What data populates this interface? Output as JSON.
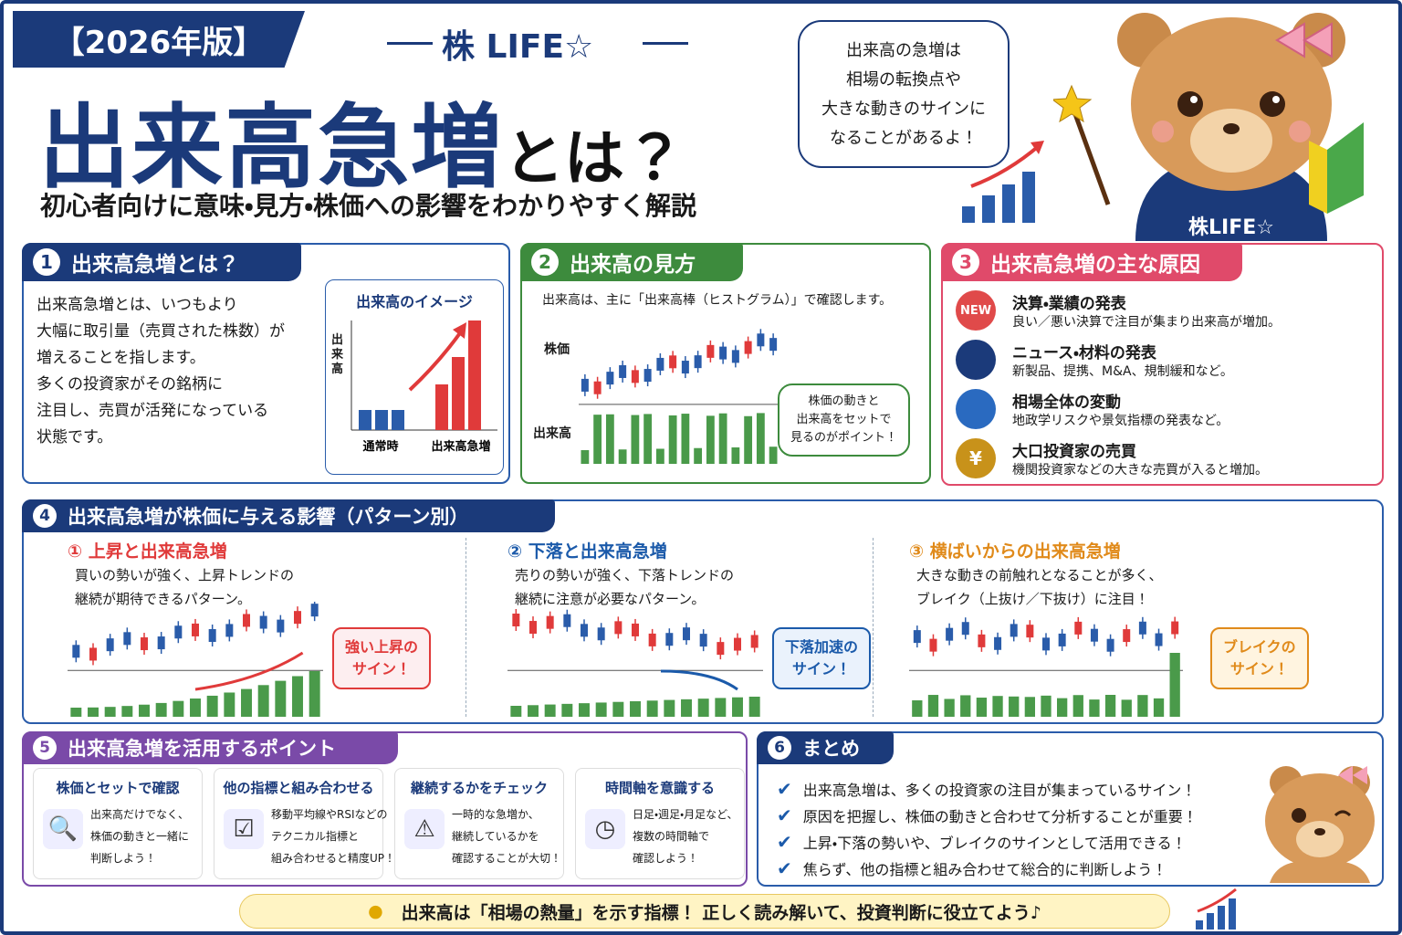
{
  "header": {
    "badge": "【2026年版】",
    "brand": "株 LIFE☆",
    "title_main": "出来高急増",
    "title_suffix": "とは？",
    "subtitle": "初心者向けに意味・見方・株価への影響をわかりやすく解説",
    "speech": [
      "出来高の急増は",
      "相場の転換点や",
      "大きな動きのサインに",
      "なることがあるよ！"
    ],
    "mascot_label": "株LIFE☆"
  },
  "section1": {
    "number": "1",
    "title": "出来高急増とは？",
    "body": [
      "出来高急増とは、いつもより",
      "大幅に取引量（売買された株数）が",
      "増えることを指します。",
      "多くの投資家がその銘柄に",
      "注目し、売買が活発になっている",
      "状態です。"
    ],
    "chart_title": "出来高のイメージ",
    "y_label": "出来高",
    "labels": [
      "通常時",
      "出来高急増"
    ]
  },
  "section2": {
    "number": "2",
    "title": "出来高の見方",
    "text": "出来高は、主に「出来高棒（ヒストグラム）」で確認します。",
    "price_label": "株価",
    "volume_label": "出来高",
    "bubble": [
      "株価の動きと",
      "出来高をセットで",
      "見るのがポイント！"
    ]
  },
  "section3": {
    "number": "3",
    "title": "出来高急増の主な原因",
    "items": [
      {
        "icon": "NEW",
        "title": "決算・業績の発表",
        "desc": "良い／悪い決算で注目が集まり出来高が増加。"
      },
      {
        "title": "ニュース・材料の発表",
        "desc": "新製品、提携、M&A、規制緩和など。"
      },
      {
        "title": "相場全体の変動",
        "desc": "地政学リスクや景気指標の発表など。"
      },
      {
        "icon": "¥",
        "title": "大口投資家の売買",
        "desc": "機関投資家などの大きな売買が入ると増加。"
      }
    ]
  },
  "section4": {
    "number": "4",
    "title": "出来高急増が株価に与える影響（パターン別）",
    "patterns": [
      {
        "title": "① 上昇と出来高急増",
        "desc": [
          "買いの勢いが強く、上昇トレンドの",
          "継続が期待できるパターン。"
        ],
        "callout": [
          "強い上昇の",
          "サイン！"
        ]
      },
      {
        "title": "② 下落と出来高急増",
        "desc": [
          "売りの勢いが強く、下落トレンドの",
          "継続に注意が必要なパターン。"
        ],
        "callout": [
          "下落加速の",
          "サイン！"
        ]
      },
      {
        "title": "③ 横ばいからの出来高急増",
        "desc": [
          "大きな動きの前触れとなることが多く、",
          "ブレイク（上抜け／下抜け）に注目！"
        ],
        "callout": [
          "ブレイクの",
          "サイン！"
        ]
      }
    ]
  },
  "section5": {
    "number": "5",
    "title": "出来高急増を活用するポイント",
    "cards": [
      {
        "title": "株価とセットで確認",
        "lines": [
          "出来高だけでなく、",
          "株価の動きと一緒に",
          "判断しよう！"
        ]
      },
      {
        "title": "他の指標と組み合わせる",
        "lines": [
          "移動平均線やRSIなどの",
          "テクニカル指標と",
          "組み合わせると精度UP！"
        ]
      },
      {
        "title": "継続するかをチェック",
        "lines": [
          "一時的な急増か、",
          "継続しているかを",
          "確認することが大切！"
        ]
      },
      {
        "title": "時間軸を意識する",
        "lines": [
          "日足・週足・月足など、",
          "複数の時間軸で",
          "確認しよう！"
        ]
      }
    ]
  },
  "section6": {
    "number": "6",
    "title": "まとめ",
    "items": [
      "出来高急増は、多くの投資家の注目が集まっているサイン！",
      "原因を把握し、株価の動きと合わせて分析することが重要！",
      "上昇・下落の勢いや、ブレイクのサインとして活用できる！",
      "焦らず、他の指標と組み合わせて総合的に判断しよう！"
    ]
  },
  "footer": {
    "text": "出来高は「相場の熱量」を示す指標！ 正しく読み解いて、投資判断に役立てよう♪"
  }
}
